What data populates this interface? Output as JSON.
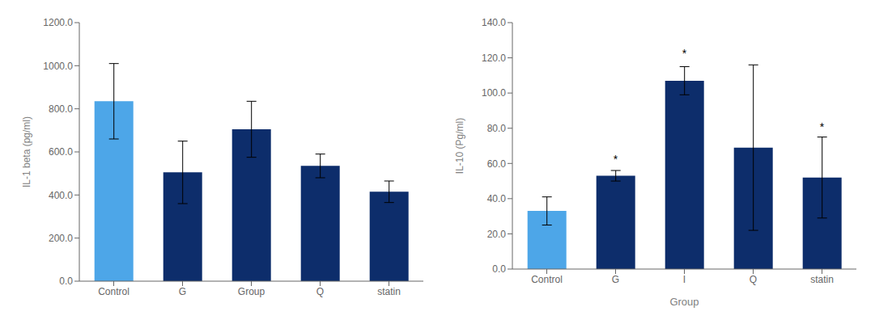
{
  "chart_data": [
    {
      "type": "bar",
      "categories": [
        "Control",
        "G",
        "Group",
        "Q",
        "statin"
      ],
      "values": [
        835,
        505,
        705,
        535,
        415
      ],
      "errors": [
        175,
        145,
        130,
        55,
        50
      ],
      "colors": [
        "#4da6e8",
        "#0d2d6b",
        "#0d2d6b",
        "#0d2d6b",
        "#0d2d6b"
      ],
      "ylabel": "IL-1 beta (pg/ml)",
      "ylim": [
        0,
        1200
      ],
      "yticks": [
        {
          "value": 0,
          "label": "0.0"
        },
        {
          "value": 200,
          "label": "200.0"
        },
        {
          "value": 400,
          "label": "400.0"
        },
        {
          "value": 600,
          "label": "600.0"
        },
        {
          "value": 800,
          "label": "800.0"
        },
        {
          "value": 1000,
          "label": "1000.0"
        },
        {
          "value": 1200,
          "label": "1200.0"
        }
      ]
    },
    {
      "type": "bar",
      "categories": [
        "Control",
        "G",
        "I",
        "Q",
        "statin"
      ],
      "values": [
        33,
        53,
        107,
        69,
        52
      ],
      "errors": [
        8,
        3,
        8,
        47,
        23
      ],
      "colors": [
        "#4da6e8",
        "#0d2d6b",
        "#0d2d6b",
        "#0d2d6b",
        "#0d2d6b"
      ],
      "ylabel": "IL-10 (Pg/ml)",
      "xlabel": "Group",
      "ylim": [
        0,
        140
      ],
      "yticks": [
        {
          "value": 0,
          "label": "0.0"
        },
        {
          "value": 20,
          "label": "20.0"
        },
        {
          "value": 40,
          "label": "40.0"
        },
        {
          "value": 60,
          "label": "60.0"
        },
        {
          "value": 80,
          "label": "80.0"
        },
        {
          "value": 100,
          "label": "100.0"
        },
        {
          "value": 120,
          "label": "120.0"
        },
        {
          "value": 140,
          "label": "140.0"
        }
      ],
      "annotations": [
        {
          "text": "*",
          "x": "G",
          "y": 58
        },
        {
          "text": "*",
          "x": "I",
          "y": 118
        },
        {
          "text": "*",
          "x": "statin",
          "y": 76
        }
      ]
    }
  ]
}
